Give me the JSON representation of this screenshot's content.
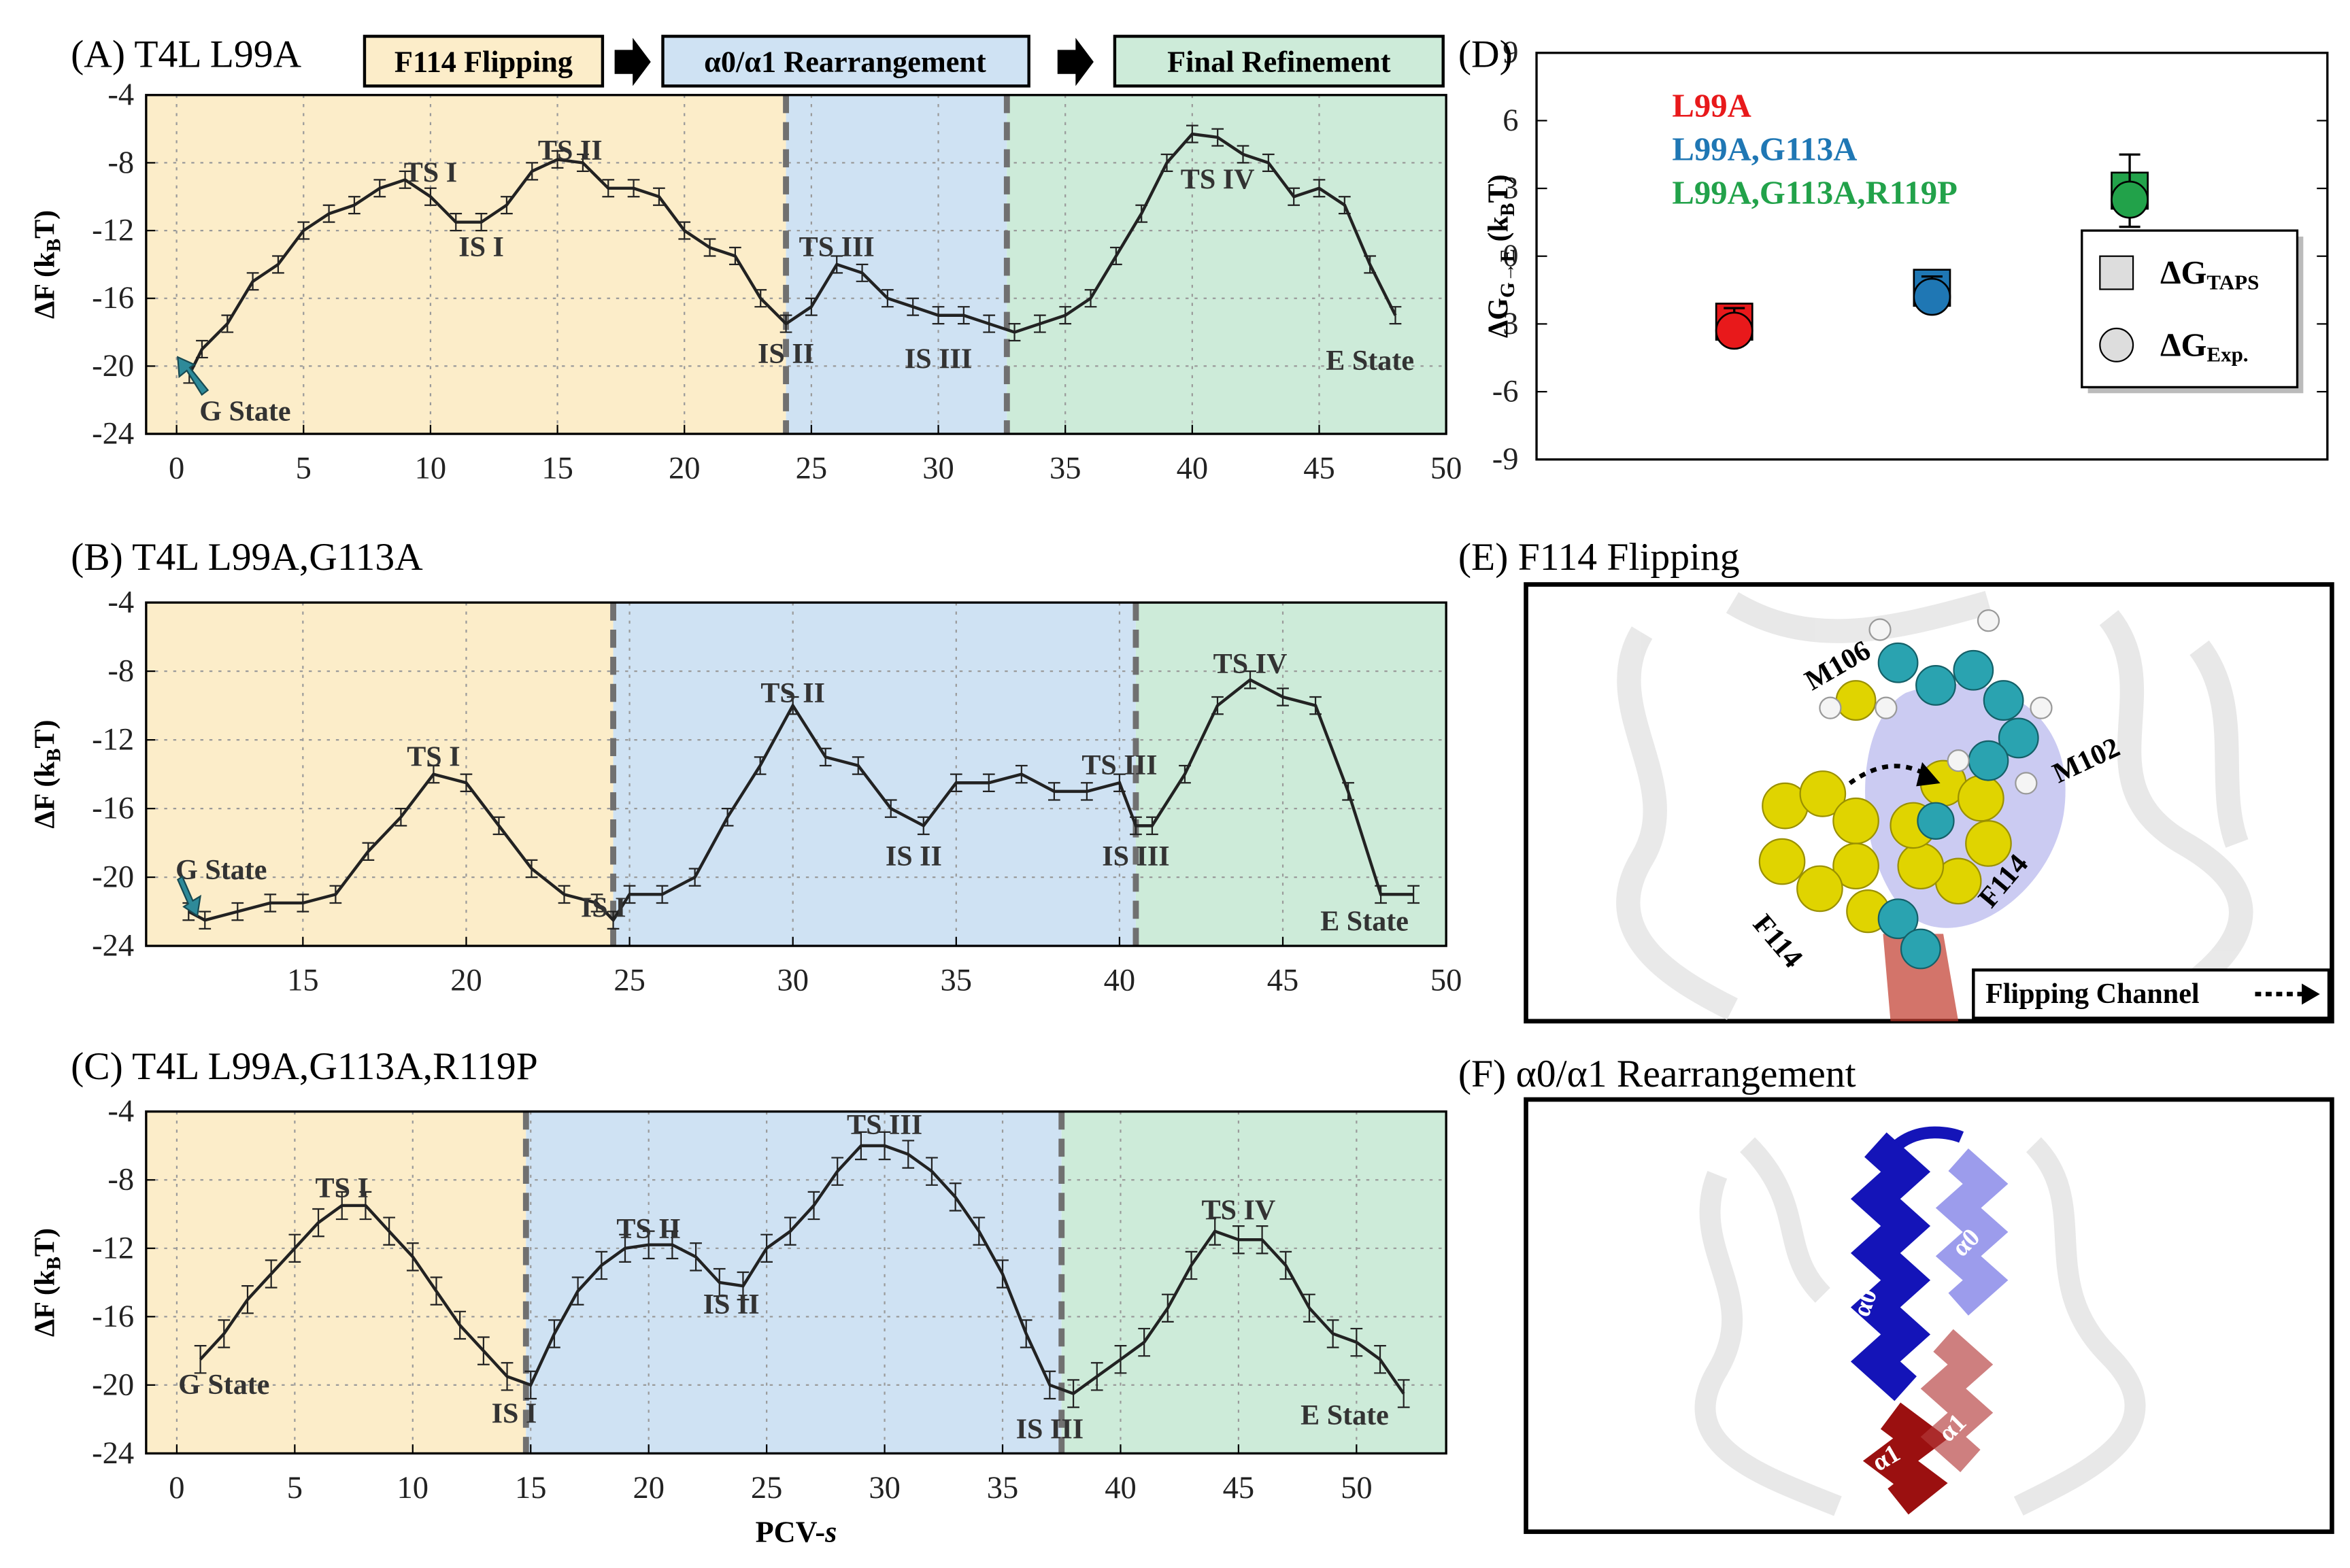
{
  "banner": {
    "stages": [
      {
        "label": "F114 Flipping",
        "color": "#fcedc9"
      },
      {
        "label": "α0/α1 Rearrangement",
        "color": "#cfe2f3"
      },
      {
        "label": "Final Refinement",
        "color": "#cdebd9"
      }
    ]
  },
  "chart_data": [
    {
      "type": "line",
      "title": "(A) T4L L99A",
      "ylabel": [
        {
          "t": "ΔF (k"
        },
        {
          "t": "B",
          "sub": true
        },
        {
          "t": "T)"
        }
      ],
      "x": [
        0.5,
        1,
        2,
        3,
        4,
        5,
        6,
        7,
        8,
        9,
        10,
        11,
        12,
        13,
        14,
        15,
        16,
        17,
        18,
        19,
        20,
        21,
        22,
        23,
        24,
        25,
        26,
        27,
        28,
        29,
        30,
        31,
        32,
        33,
        34,
        35,
        36,
        37,
        38,
        39,
        40,
        41,
        42,
        43,
        44,
        45,
        46,
        47,
        48
      ],
      "series": [
        {
          "color": "#222222",
          "values": [
            -20.5,
            -19,
            -17.5,
            -15,
            -14,
            -12,
            -11,
            -10.5,
            -9.5,
            -9,
            -10,
            -11.5,
            -11.5,
            -10.5,
            -8.5,
            -7.8,
            -8,
            -9.5,
            -9.5,
            -10,
            -12,
            -13,
            -13.5,
            -16,
            -17.5,
            -16.5,
            -14,
            -14.5,
            -16,
            -16.5,
            -17,
            -17,
            -17.5,
            -18,
            -17.5,
            -17,
            -16,
            -13.5,
            -11,
            -8,
            -6.3,
            -6.5,
            -7.5,
            -8,
            -10,
            -9.5,
            -10.5,
            -14,
            -17
          ],
          "errors": [
            0.5,
            0.5,
            0.5,
            0.5,
            0.5,
            0.5,
            0.5,
            0.5,
            0.5,
            0.5,
            0.5,
            0.5,
            0.5,
            0.5,
            0.5,
            0.5,
            0.5,
            0.5,
            0.5,
            0.5,
            0.5,
            0.5,
            0.5,
            0.5,
            0.5,
            0.5,
            0.5,
            0.5,
            0.5,
            0.5,
            0.5,
            0.5,
            0.5,
            0.5,
            0.5,
            0.5,
            0.5,
            0.5,
            0.5,
            0.5,
            0.5,
            0.5,
            0.5,
            0.5,
            0.5,
            0.5,
            0.5,
            0.5,
            0.5
          ]
        }
      ],
      "xlim": [
        -1.2,
        50
      ],
      "ylim": [
        -24,
        -4
      ],
      "xticks": [
        0,
        5,
        10,
        15,
        20,
        25,
        30,
        35,
        40,
        45,
        50
      ],
      "yticks": [
        -4,
        -8,
        -12,
        -16,
        -20,
        -24
      ],
      "grid": true,
      "stage_boundaries": [
        24,
        32.7
      ],
      "annotations": [
        {
          "text": "TS I",
          "x": 10,
          "y": -8.6
        },
        {
          "text": "TS II",
          "x": 15.5,
          "y": -7.3
        },
        {
          "text": "IS I",
          "x": 12,
          "y": -13
        },
        {
          "text": "TS III",
          "x": 26,
          "y": -13
        },
        {
          "text": "IS II",
          "x": 24,
          "y": -19.3
        },
        {
          "text": "IS III",
          "x": 30,
          "y": -19.6
        },
        {
          "text": "TS IV",
          "x": 41,
          "y": -9
        },
        {
          "text": "E State",
          "x": 47,
          "y": -19.7
        },
        {
          "text": "G State",
          "x": 2.7,
          "y": -22.7
        }
      ]
    },
    {
      "type": "line",
      "title": "(B) T4L L99A,G113A",
      "ylabel": [
        {
          "t": "ΔF (k"
        },
        {
          "t": "B",
          "sub": true
        },
        {
          "t": "T)"
        }
      ],
      "x": [
        11.5,
        12,
        13,
        14,
        15,
        16,
        17,
        18,
        19,
        20,
        21,
        22,
        23,
        24,
        24.5,
        25,
        26,
        27,
        28,
        29,
        30,
        31,
        32,
        33,
        34,
        35,
        36,
        37,
        38,
        39,
        40,
        40.5,
        41,
        42,
        43,
        44,
        45,
        46,
        47,
        48,
        49
      ],
      "series": [
        {
          "color": "#222222",
          "values": [
            -22,
            -22.5,
            -22,
            -21.5,
            -21.5,
            -21,
            -18.5,
            -16.5,
            -14,
            -14.5,
            -17,
            -19.5,
            -21,
            -21.5,
            -22.5,
            -21,
            -21,
            -20,
            -16.5,
            -13.5,
            -10,
            -13,
            -13.5,
            -16,
            -17,
            -14.5,
            -14.5,
            -14,
            -15,
            -15,
            -14.5,
            -17,
            -17,
            -14,
            -10,
            -8.5,
            -9.5,
            -10,
            -15,
            -21,
            -21
          ],
          "errors": [
            0.5,
            0.5,
            0.5,
            0.5,
            0.5,
            0.5,
            0.5,
            0.5,
            0.5,
            0.5,
            0.5,
            0.5,
            0.5,
            0.5,
            0.5,
            0.5,
            0.5,
            0.5,
            0.5,
            0.5,
            0.5,
            0.5,
            0.5,
            0.5,
            0.5,
            0.5,
            0.5,
            0.5,
            0.5,
            0.5,
            0.5,
            0.5,
            0.5,
            0.5,
            0.5,
            0.5,
            0.5,
            0.5,
            0.5,
            0.5,
            0.5
          ]
        }
      ],
      "xlim": [
        10.2,
        50
      ],
      "ylim": [
        -24,
        -4
      ],
      "xticks": [
        15,
        20,
        25,
        30,
        35,
        40,
        45,
        50
      ],
      "yticks": [
        -4,
        -8,
        -12,
        -16,
        -20,
        -24
      ],
      "grid": true,
      "stage_boundaries": [
        24.5,
        40.5
      ],
      "annotations": [
        {
          "text": "TS I",
          "x": 19,
          "y": -13
        },
        {
          "text": "G State",
          "x": 12.5,
          "y": -19.6
        },
        {
          "text": "IS I",
          "x": 24.2,
          "y": -21.8
        },
        {
          "text": "TS II",
          "x": 30,
          "y": -9.3
        },
        {
          "text": "IS II",
          "x": 33.7,
          "y": -18.8
        },
        {
          "text": "TS III",
          "x": 40,
          "y": -13.5
        },
        {
          "text": "IS III",
          "x": 40.5,
          "y": -18.8
        },
        {
          "text": "TS IV",
          "x": 44,
          "y": -7.6
        },
        {
          "text": "E State",
          "x": 47.5,
          "y": -22.6
        }
      ]
    },
    {
      "type": "line",
      "title": "(C) T4L L99A,G113A,R119P",
      "ylabel": [
        {
          "t": "ΔF (k"
        },
        {
          "t": "B",
          "sub": true
        },
        {
          "t": "T)"
        }
      ],
      "xlabel": [
        {
          "t": "PCV-"
        },
        {
          "t": "s",
          "italic": true
        }
      ],
      "x": [
        1,
        2,
        3,
        4,
        5,
        6,
        7,
        8,
        9,
        10,
        11,
        12,
        13,
        14,
        15,
        16,
        17,
        18,
        19,
        20,
        21,
        22,
        23,
        24,
        25,
        26,
        27,
        28,
        29,
        30,
        31,
        32,
        33,
        34,
        35,
        36,
        37,
        38,
        39,
        40,
        41,
        42,
        43,
        44,
        45,
        46,
        47,
        48,
        49,
        50,
        51,
        52
      ],
      "series": [
        {
          "color": "#222222",
          "values": [
            -18.5,
            -17,
            -15,
            -13.5,
            -12,
            -10.5,
            -9.5,
            -9.5,
            -11,
            -12.5,
            -14.5,
            -16.5,
            -18,
            -19.5,
            -20,
            -17,
            -14.5,
            -13,
            -12,
            -11.8,
            -11.8,
            -12.5,
            -14,
            -14.2,
            -12,
            -11,
            -9.5,
            -7.5,
            -6,
            -6,
            -6.5,
            -7.5,
            -9,
            -11,
            -13.5,
            -17,
            -20,
            -20.5,
            -19.5,
            -18.5,
            -17.5,
            -15.5,
            -13,
            -11,
            -11.5,
            -11.5,
            -13,
            -15.5,
            -17,
            -17.5,
            -18.5,
            -20.5
          ],
          "errors": [
            0.8,
            0.8,
            0.8,
            0.8,
            0.8,
            0.8,
            0.8,
            0.8,
            0.8,
            0.8,
            0.8,
            0.8,
            0.8,
            0.8,
            0.8,
            0.8,
            0.8,
            0.8,
            0.8,
            0.8,
            0.8,
            0.8,
            0.8,
            0.8,
            0.8,
            0.8,
            0.8,
            0.8,
            0.8,
            0.8,
            0.8,
            0.8,
            0.8,
            0.8,
            0.8,
            0.8,
            0.8,
            0.8,
            0.8,
            0.8,
            0.8,
            0.8,
            0.8,
            0.8,
            0.8,
            0.8,
            0.8,
            0.8,
            0.8,
            0.8,
            0.8,
            0.8
          ]
        }
      ],
      "xlim": [
        -1.3,
        53.8
      ],
      "ylim": [
        -24,
        -4
      ],
      "xticks": [
        0,
        5,
        10,
        15,
        20,
        25,
        30,
        35,
        40,
        45,
        50
      ],
      "yticks": [
        -4,
        -8,
        -12,
        -16,
        -20,
        -24
      ],
      "grid": true,
      "stage_boundaries": [
        14.8,
        37.5
      ],
      "annotations": [
        {
          "text": "TS I",
          "x": 7,
          "y": -8.5
        },
        {
          "text": "G State",
          "x": 2,
          "y": -20
        },
        {
          "text": "IS I",
          "x": 14.3,
          "y": -21.7
        },
        {
          "text": "TS II",
          "x": 20,
          "y": -10.9
        },
        {
          "text": "IS II",
          "x": 23.5,
          "y": -15.3
        },
        {
          "text": "TS III",
          "x": 30,
          "y": -4.8
        },
        {
          "text": "IS III",
          "x": 37,
          "y": -22.6
        },
        {
          "text": "TS IV",
          "x": 45,
          "y": -9.8
        },
        {
          "text": "E State",
          "x": 49.5,
          "y": -21.8
        }
      ]
    },
    {
      "type": "scatter",
      "title": "(D)",
      "ylabel": [
        {
          "t": "ΔG"
        },
        {
          "t": "G→E",
          "sub": true
        },
        {
          "t": " (k"
        },
        {
          "t": "B",
          "sub": true
        },
        {
          "t": "T)"
        }
      ],
      "systems": [
        {
          "name": "L99A",
          "color": "#e8191b"
        },
        {
          "name": "L99A,G113A",
          "color": "#1f77b4"
        },
        {
          "name": "L99A,G113A,R119P",
          "color": "#22a24a"
        }
      ],
      "x": [
        1,
        2,
        3
      ],
      "series": [
        {
          "name": "ΔG",
          "subscript": "TAPS",
          "marker": "square",
          "values": [
            -2.9,
            -1.4,
            2.9
          ],
          "errors": [
            0.6,
            0.5,
            1.6
          ]
        },
        {
          "name": "ΔG",
          "subscript": "Exp.",
          "marker": "circle",
          "values": [
            -3.3,
            -1.8,
            2.5
          ]
        }
      ],
      "xlim": [
        0,
        4
      ],
      "ylim": [
        -9,
        9
      ],
      "yticks": [
        9,
        6,
        3,
        0,
        -3,
        -6,
        -9
      ],
      "legend": "center right"
    }
  ],
  "panels": [
    {
      "title": "(E) F114 Flipping",
      "labels": [
        "M106",
        "M102",
        "F114",
        "F114"
      ],
      "legend": "Flipping Channel"
    },
    {
      "title": "(F) α0/α1 Rearrangement",
      "labels": [
        "α0",
        "α0",
        "α1",
        "α1"
      ]
    }
  ]
}
